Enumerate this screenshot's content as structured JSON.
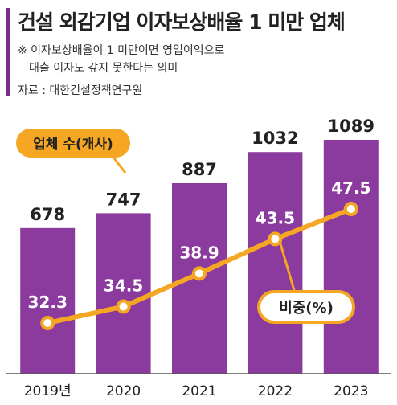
{
  "title": "건설 외감기업 이자보상배율 1 미만 업체",
  "notes": [
    "※ 이자보상배율이 1 미만이면 영업이익으로",
    "대출 이자도 갚지 못한다는 의미"
  ],
  "source": "자료 : 대한건설정책연구원",
  "chart_data": {
    "type": "bar",
    "categories": [
      "2019년",
      "2020",
      "2021",
      "2022",
      "2023"
    ],
    "series": [
      {
        "name": "업체 수(개사)",
        "type": "bar",
        "values": [
          678,
          747,
          887,
          1032,
          1089
        ]
      },
      {
        "name": "비중(%)",
        "type": "line",
        "values": [
          32.3,
          34.5,
          38.9,
          43.5,
          47.5
        ]
      }
    ],
    "colors": {
      "bar": "#8b3a9e",
      "line": "#f5a623",
      "marker_fill": "#ffffff",
      "title_accent": "#7b2c8f"
    }
  }
}
